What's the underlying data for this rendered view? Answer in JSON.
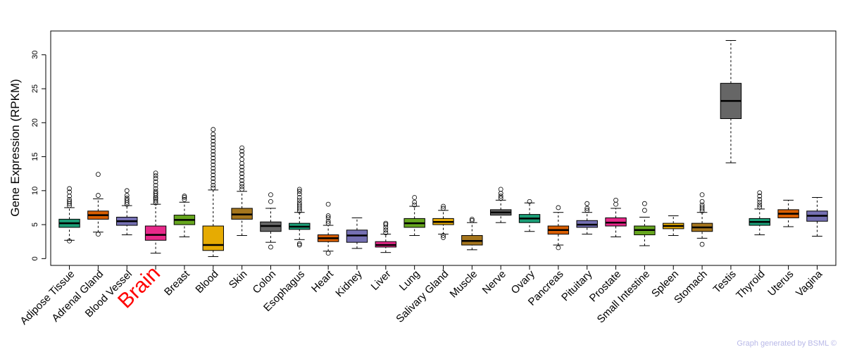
{
  "chart_data": {
    "type": "boxplot",
    "title": "",
    "xlabel": "",
    "ylabel": "Gene Expression (RPKM)",
    "ylim": [
      -1,
      33.5
    ],
    "yticks": [
      0,
      5,
      10,
      15,
      20,
      25,
      30
    ],
    "highlighted_category": "Brain",
    "highlight_color": "#ff0000",
    "categories": [
      "Adipose Tissue",
      "Adrenal Gland",
      "Blood Vessel",
      "Brain",
      "Breast",
      "Blood",
      "Skin",
      "Colon",
      "Esophagus",
      "Heart",
      "Kidney",
      "Liver",
      "Lung",
      "Salivary Gland",
      "Muscle",
      "Nerve",
      "Ovary",
      "Pancreas",
      "Pituitary",
      "Prostate",
      "Small Intestine",
      "Spleen",
      "Stomach",
      "Testis",
      "Thyroid",
      "Uterus",
      "Vagina"
    ],
    "boxes": [
      {
        "name": "Adipose Tissue",
        "color": "#1b9e77",
        "min": 2.7,
        "q1": 4.6,
        "median": 5.2,
        "q3": 5.8,
        "max": 7.5,
        "outliers": [
          7.8,
          8.1,
          8.4,
          8.7,
          9.2,
          9.8,
          10.3,
          2.6
        ]
      },
      {
        "name": "Adrenal Gland",
        "color": "#d95f02",
        "min": 3.9,
        "q1": 5.8,
        "median": 6.4,
        "q3": 7.0,
        "max": 8.8,
        "outliers": [
          9.3,
          12.4,
          3.6
        ]
      },
      {
        "name": "Blood Vessel",
        "color": "#7570b3",
        "min": 3.5,
        "q1": 4.9,
        "median": 5.5,
        "q3": 6.1,
        "max": 7.8,
        "outliers": [
          8.0,
          8.3,
          8.6,
          8.9,
          9.3,
          10.0
        ]
      },
      {
        "name": "Brain",
        "color": "#e7298a",
        "min": 0.8,
        "q1": 2.7,
        "median": 3.5,
        "q3": 4.8,
        "max": 8.0,
        "outliers": [
          8.2,
          8.5,
          8.8,
          9.0,
          9.3,
          9.6,
          9.9,
          10.3,
          10.8,
          11.3,
          11.8,
          12.2,
          12.6
        ]
      },
      {
        "name": "Breast",
        "color": "#66a61e",
        "min": 3.2,
        "q1": 5.0,
        "median": 5.7,
        "q3": 6.4,
        "max": 8.3,
        "outliers": [
          8.7,
          9.0,
          9.2
        ]
      },
      {
        "name": "Blood",
        "color": "#e6ab02",
        "min": 0.3,
        "q1": 1.2,
        "median": 2.0,
        "q3": 4.8,
        "max": 10.1,
        "outliers": [
          10.4,
          10.8,
          11.3,
          11.8,
          12.3,
          12.8,
          13.3,
          13.8,
          14.3,
          14.8,
          15.3,
          15.8,
          16.3,
          16.8,
          17.3,
          17.8,
          18.3,
          19.0
        ]
      },
      {
        "name": "Skin",
        "color": "#a6761d",
        "min": 3.4,
        "q1": 5.8,
        "median": 6.5,
        "q3": 7.4,
        "max": 9.9,
        "outliers": [
          10.2,
          10.6,
          11.0,
          11.5,
          12.0,
          12.5,
          13.0,
          13.5,
          14.0,
          14.6,
          15.3,
          15.8,
          16.3
        ]
      },
      {
        "name": "Colon",
        "color": "#666666",
        "min": 2.4,
        "q1": 4.0,
        "median": 4.8,
        "q3": 5.4,
        "max": 7.4,
        "outliers": [
          8.4,
          9.4,
          1.7
        ]
      },
      {
        "name": "Esophagus",
        "color": "#1b9e77",
        "min": 2.8,
        "q1": 4.3,
        "median": 4.7,
        "q3": 5.2,
        "max": 6.8,
        "outliers": [
          7.0,
          7.3,
          7.6,
          7.9,
          8.2,
          8.6,
          9.0,
          9.5,
          9.9,
          10.2,
          2.0,
          2.2
        ]
      },
      {
        "name": "Heart",
        "color": "#d95f02",
        "min": 1.1,
        "q1": 2.5,
        "median": 3.0,
        "q3": 3.5,
        "max": 4.9,
        "outliers": [
          5.2,
          5.5,
          6.0,
          6.3,
          8.0,
          0.8
        ]
      },
      {
        "name": "Kidney",
        "color": "#7570b3",
        "min": 1.5,
        "q1": 2.4,
        "median": 3.4,
        "q3": 4.2,
        "max": 6.0,
        "outliers": []
      },
      {
        "name": "Liver",
        "color": "#e7298a",
        "min": 0.9,
        "q1": 1.7,
        "median": 2.0,
        "q3": 2.5,
        "max": 3.6,
        "outliers": [
          3.8,
          4.2,
          4.6,
          5.0,
          5.2
        ]
      },
      {
        "name": "Lung",
        "color": "#66a61e",
        "min": 3.4,
        "q1": 4.6,
        "median": 5.2,
        "q3": 5.9,
        "max": 7.7,
        "outliers": [
          7.9,
          8.3,
          9.0
        ]
      },
      {
        "name": "Salivary Gland",
        "color": "#e6ab02",
        "min": 3.6,
        "q1": 5.0,
        "median": 5.4,
        "q3": 5.9,
        "max": 7.1,
        "outliers": [
          7.4,
          7.7,
          3.4,
          3.1
        ]
      },
      {
        "name": "Muscle",
        "color": "#a6761d",
        "min": 1.3,
        "q1": 2.0,
        "median": 2.6,
        "q3": 3.4,
        "max": 5.3,
        "outliers": [
          5.6,
          5.8
        ]
      },
      {
        "name": "Nerve",
        "color": "#666666",
        "min": 5.3,
        "q1": 6.4,
        "median": 6.8,
        "q3": 7.2,
        "max": 8.6,
        "outliers": [
          8.9,
          9.2,
          9.6,
          10.2
        ]
      },
      {
        "name": "Ovary",
        "color": "#1b9e77",
        "min": 4.0,
        "q1": 5.3,
        "median": 5.9,
        "q3": 6.5,
        "max": 8.2,
        "outliers": [
          8.4
        ]
      },
      {
        "name": "Pancreas",
        "color": "#d95f02",
        "min": 2.0,
        "q1": 3.6,
        "median": 4.2,
        "q3": 4.8,
        "max": 6.8,
        "outliers": [
          7.5,
          1.6
        ]
      },
      {
        "name": "Pituitary",
        "color": "#7570b3",
        "min": 3.6,
        "q1": 4.6,
        "median": 5.0,
        "q3": 5.6,
        "max": 6.8,
        "outliers": [
          7.1,
          7.4,
          8.1
        ]
      },
      {
        "name": "Prostate",
        "color": "#e7298a",
        "min": 3.2,
        "q1": 4.8,
        "median": 5.3,
        "q3": 6.0,
        "max": 7.4,
        "outliers": [
          8.0,
          8.6
        ]
      },
      {
        "name": "Small Intestine",
        "color": "#66a61e",
        "min": 1.9,
        "q1": 3.5,
        "median": 4.2,
        "q3": 4.8,
        "max": 6.1,
        "outliers": [
          7.1,
          8.1
        ]
      },
      {
        "name": "Spleen",
        "color": "#e6ab02",
        "min": 3.4,
        "q1": 4.4,
        "median": 4.8,
        "q3": 5.2,
        "max": 6.3,
        "outliers": []
      },
      {
        "name": "Stomach",
        "color": "#a6761d",
        "min": 3.0,
        "q1": 4.0,
        "median": 4.6,
        "q3": 5.2,
        "max": 6.8,
        "outliers": [
          7.0,
          7.3,
          7.6,
          7.9,
          8.4,
          9.4,
          2.1
        ]
      },
      {
        "name": "Testis",
        "color": "#666666",
        "min": 14.1,
        "q1": 20.6,
        "median": 23.2,
        "q3": 25.8,
        "max": 32.1,
        "outliers": []
      },
      {
        "name": "Thyroid",
        "color": "#1b9e77",
        "min": 3.5,
        "q1": 4.9,
        "median": 5.4,
        "q3": 5.9,
        "max": 7.3,
        "outliers": [
          7.6,
          7.9,
          8.3,
          8.7,
          9.2,
          9.7
        ]
      },
      {
        "name": "Uterus",
        "color": "#d95f02",
        "min": 4.7,
        "q1": 6.0,
        "median": 6.6,
        "q3": 7.2,
        "max": 8.6,
        "outliers": []
      },
      {
        "name": "Vagina",
        "color": "#7570b3",
        "min": 3.3,
        "q1": 5.5,
        "median": 6.3,
        "q3": 7.0,
        "max": 9.0,
        "outliers": []
      }
    ]
  },
  "footer": {
    "credit": "Graph generated by BSML ©"
  }
}
